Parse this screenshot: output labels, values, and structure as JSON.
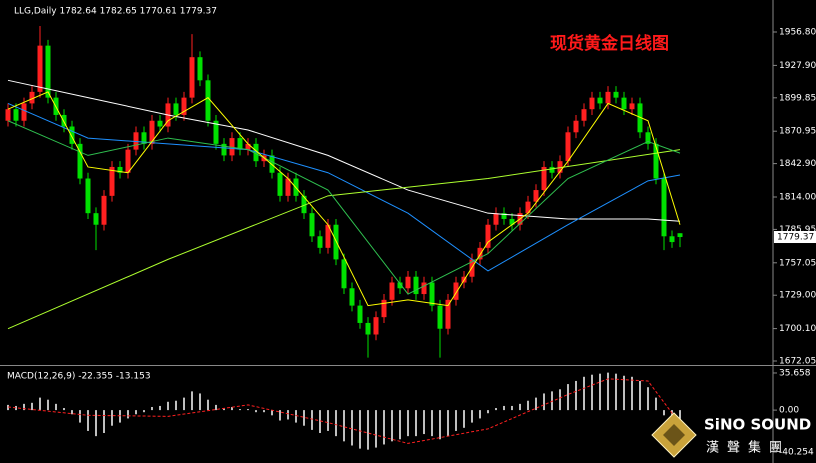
{
  "chart_data": [
    {
      "type": "candlestick",
      "header": "LLG,Daily 1782.64 1782.65 1770.61 1779.37",
      "title": "现货黄金日线图",
      "up_color": "#ff2020",
      "down_color": "#00e000",
      "open": [
        1880,
        1890,
        1880,
        1895,
        1905,
        1945,
        1900,
        1885,
        1875,
        1860,
        1830,
        1800,
        1790,
        1815,
        1840,
        1835,
        1855,
        1870,
        1860,
        1880,
        1875,
        1895,
        1885,
        1900,
        1935,
        1915,
        1880,
        1860,
        1850,
        1865,
        1855,
        1860,
        1845,
        1850,
        1835,
        1815,
        1830,
        1815,
        1800,
        1780,
        1770,
        1790,
        1760,
        1735,
        1720,
        1705,
        1695,
        1710,
        1725,
        1740,
        1735,
        1745,
        1730,
        1740,
        1720,
        1700,
        1725,
        1740,
        1745,
        1760,
        1770,
        1790,
        1800,
        1795,
        1790,
        1800,
        1810,
        1820,
        1840,
        1835,
        1845,
        1870,
        1880,
        1890,
        1900,
        1895,
        1905,
        1900,
        1890,
        1895,
        1870,
        1860,
        1830,
        1780,
        1782.64
      ],
      "high": [
        1895,
        1895,
        1900,
        1910,
        1962,
        1950,
        1905,
        1890,
        1880,
        1865,
        1835,
        1805,
        1820,
        1845,
        1845,
        1860,
        1875,
        1875,
        1885,
        1885,
        1900,
        1900,
        1905,
        1955,
        1940,
        1920,
        1885,
        1865,
        1870,
        1870,
        1865,
        1865,
        1855,
        1855,
        1840,
        1835,
        1835,
        1820,
        1805,
        1785,
        1795,
        1795,
        1765,
        1740,
        1725,
        1710,
        1715,
        1730,
        1745,
        1745,
        1750,
        1750,
        1745,
        1745,
        1725,
        1730,
        1745,
        1750,
        1765,
        1775,
        1795,
        1805,
        1805,
        1800,
        1805,
        1815,
        1825,
        1845,
        1845,
        1850,
        1875,
        1885,
        1895,
        1905,
        1905,
        1910,
        1910,
        1905,
        1900,
        1900,
        1875,
        1865,
        1835,
        1785,
        1782.65
      ],
      "low": [
        1875,
        1875,
        1875,
        1890,
        1900,
        1895,
        1880,
        1870,
        1855,
        1825,
        1795,
        1768,
        1785,
        1810,
        1830,
        1830,
        1850,
        1855,
        1855,
        1870,
        1870,
        1880,
        1880,
        1895,
        1910,
        1875,
        1855,
        1845,
        1845,
        1850,
        1850,
        1840,
        1840,
        1830,
        1810,
        1810,
        1810,
        1795,
        1775,
        1765,
        1765,
        1755,
        1730,
        1715,
        1700,
        1675,
        1690,
        1705,
        1720,
        1730,
        1730,
        1725,
        1725,
        1715,
        1675,
        1695,
        1720,
        1735,
        1740,
        1755,
        1765,
        1785,
        1790,
        1785,
        1785,
        1795,
        1805,
        1815,
        1830,
        1830,
        1840,
        1865,
        1875,
        1885,
        1890,
        1890,
        1895,
        1885,
        1885,
        1865,
        1855,
        1825,
        1768,
        1770,
        1770.61
      ],
      "close": [
        1890,
        1880,
        1895,
        1905,
        1945,
        1900,
        1885,
        1875,
        1860,
        1830,
        1800,
        1790,
        1815,
        1840,
        1835,
        1855,
        1870,
        1860,
        1880,
        1875,
        1895,
        1885,
        1900,
        1935,
        1915,
        1880,
        1860,
        1850,
        1865,
        1855,
        1860,
        1845,
        1850,
        1835,
        1815,
        1830,
        1815,
        1800,
        1780,
        1770,
        1790,
        1760,
        1735,
        1720,
        1705,
        1695,
        1710,
        1725,
        1740,
        1735,
        1745,
        1730,
        1740,
        1720,
        1700,
        1725,
        1740,
        1745,
        1760,
        1770,
        1790,
        1800,
        1795,
        1790,
        1800,
        1810,
        1820,
        1840,
        1835,
        1845,
        1870,
        1880,
        1890,
        1900,
        1895,
        1905,
        1900,
        1890,
        1895,
        1870,
        1860,
        1830,
        1780,
        1775,
        1779.37
      ],
      "series": [
        {
          "color": "#ffffff",
          "x": [
            0,
            10,
            20,
            30,
            40,
            50,
            60,
            70,
            80,
            84
          ],
          "values": [
            1915,
            1900,
            1885,
            1872,
            1850,
            1820,
            1800,
            1795,
            1795,
            1793
          ]
        },
        {
          "color": "#1e90ff",
          "x": [
            0,
            10,
            20,
            30,
            40,
            50,
            60,
            70,
            80,
            84
          ],
          "values": [
            1895,
            1865,
            1860,
            1855,
            1835,
            1800,
            1750,
            1790,
            1828,
            1833
          ]
        },
        {
          "color": "#adff2f",
          "x": [
            0,
            20,
            40,
            60,
            84
          ],
          "values": [
            1700,
            1760,
            1815,
            1830,
            1855
          ]
        },
        {
          "color": "#2fbf4f",
          "x": [
            0,
            10,
            20,
            30,
            40,
            50,
            60,
            70,
            80,
            84
          ],
          "values": [
            1880,
            1850,
            1865,
            1855,
            1820,
            1730,
            1765,
            1830,
            1862,
            1852
          ]
        },
        {
          "color": "#ffff00",
          "x": [
            0,
            5,
            10,
            15,
            20,
            25,
            30,
            35,
            40,
            45,
            50,
            55,
            60,
            65,
            70,
            75,
            80,
            84
          ],
          "values": [
            1890,
            1905,
            1840,
            1835,
            1880,
            1900,
            1860,
            1830,
            1790,
            1720,
            1725,
            1720,
            1775,
            1800,
            1845,
            1895,
            1880,
            1790
          ]
        }
      ],
      "ylim": [
        1668.6,
        1984.5
      ],
      "yticks": [
        {
          "value": 1956.8,
          "label": "1956.80"
        },
        {
          "value": 1927.9,
          "label": "1927.90"
        },
        1899.85,
        {
          "value": 1870.95,
          "label": "1870.95"
        },
        {
          "value": 1842.9,
          "label": "1842.90"
        },
        {
          "value": 1814,
          "label": "1814.00"
        },
        1785.95,
        1757.05,
        {
          "value": 1729,
          "label": "1729.00"
        },
        {
          "value": 1700.1,
          "label": "1700.10"
        },
        1672.05
      ]
    },
    {
      "type": "macd",
      "title": "MACD(12,26,9) -22.355 -13.153",
      "color": "#ffffff",
      "values": [
        5,
        4,
        6,
        7,
        12,
        10,
        6,
        2,
        -4,
        -12,
        -20,
        -25,
        -22,
        -15,
        -12,
        -8,
        -4,
        -2,
        3,
        4,
        8,
        9,
        12,
        18,
        16,
        10,
        5,
        2,
        3,
        1,
        1,
        -2,
        -2,
        -5,
        -10,
        -9,
        -12,
        -15,
        -19,
        -22,
        -20,
        -25,
        -30,
        -34,
        -37,
        -38,
        -36,
        -33,
        -30,
        -28,
        -25,
        -25,
        -23,
        -25,
        -28,
        -25,
        -20,
        -17,
        -12,
        -8,
        -3,
        2,
        4,
        4,
        6,
        9,
        12,
        16,
        18,
        20,
        25,
        28,
        32,
        34,
        35,
        36,
        35,
        33,
        32,
        28,
        22,
        12,
        -5,
        -14,
        -22.355
      ],
      "signal": {
        "color": "#ff2020",
        "x": [
          0,
          10,
          20,
          30,
          40,
          50,
          60,
          70,
          75,
          80,
          84
        ],
        "values": [
          3,
          -5,
          -6,
          5,
          -12,
          -32,
          -18,
          15,
          30,
          28,
          -13.153
        ]
      },
      "ylim": [
        -50.8,
        41.4
      ],
      "yticks": [
        35.658,
        {
          "value": 0,
          "label": "0.00"
        },
        -40.254
      ]
    }
  ],
  "logo": {
    "name": "SiNO SOUND",
    "sub": "漢聲集團"
  }
}
